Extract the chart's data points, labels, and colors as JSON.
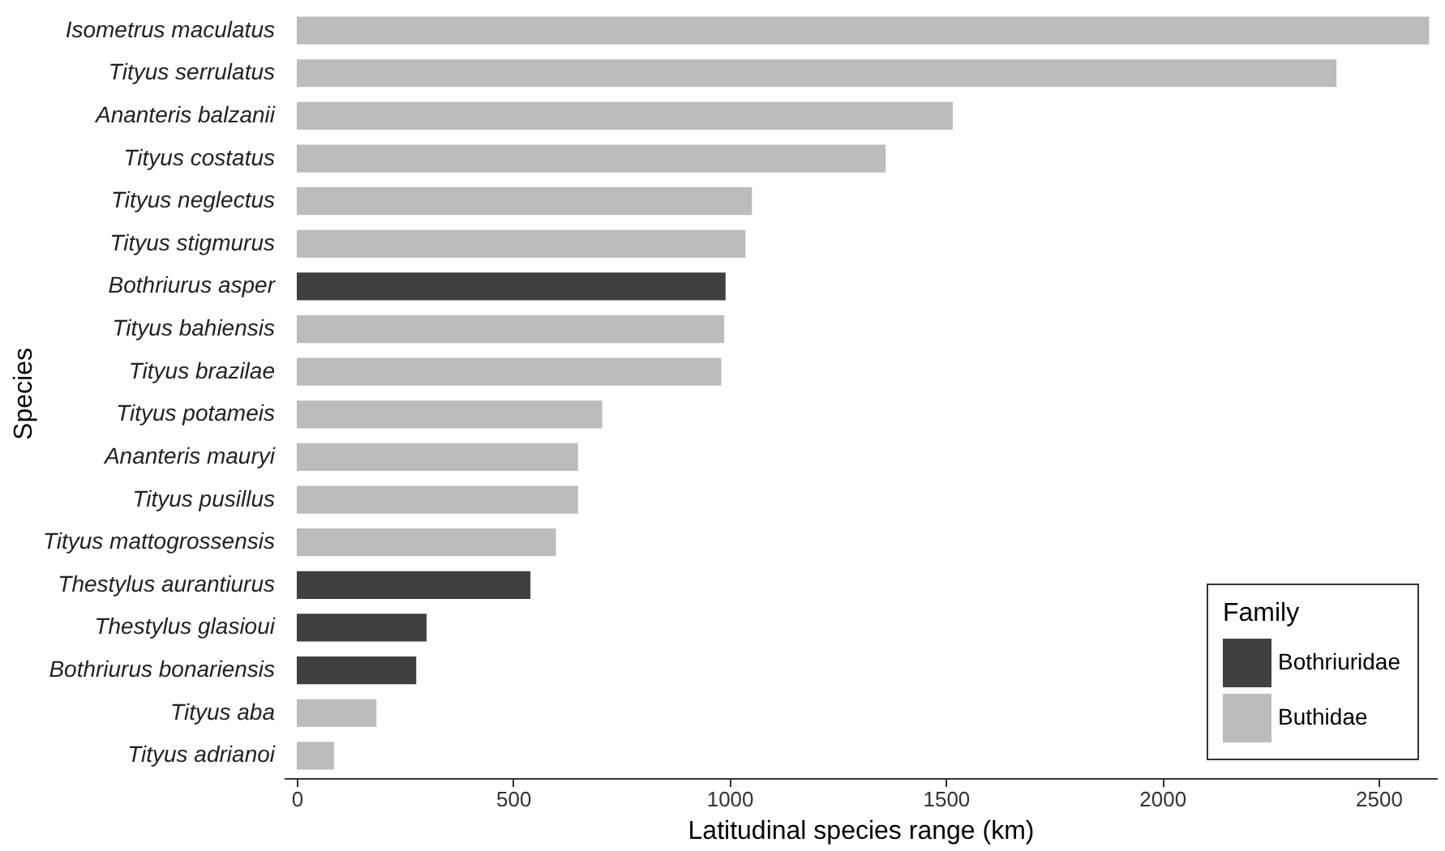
{
  "chart_data": {
    "type": "bar",
    "orientation": "horizontal",
    "xlabel": "Latitudinal species range (km)",
    "ylabel": "Species",
    "legend_title": "Family",
    "categories": [
      "Isometrus maculatus",
      "Tityus serrulatus",
      "Ananteris balzanii",
      "Tityus costatus",
      "Tityus neglectus",
      "Tityus stigmurus",
      "Bothriurus asper",
      "Tityus bahiensis",
      "Tityus brazilae",
      "Tityus potameis",
      "Ananteris mauryi",
      "Tityus pusillus",
      "Tityus mattogrossensis",
      "Thestylus aurantiurus",
      "Thestylus glasioui",
      "Bothriurus bonariensis",
      "Tityus aba",
      "Tityus adrianoi"
    ],
    "series": [
      {
        "name": "Bothriuridae",
        "color": "#404040",
        "values": [
          null,
          null,
          null,
          null,
          null,
          null,
          991,
          null,
          null,
          null,
          null,
          null,
          null,
          540,
          300,
          276,
          null,
          null
        ]
      },
      {
        "name": "Buthidae",
        "color": "#bcbcbc",
        "values": [
          2617,
          2403,
          1516,
          1361,
          1052,
          1037,
          null,
          988,
          981,
          706,
          650,
          650,
          599,
          null,
          null,
          null,
          184,
          86
        ]
      }
    ],
    "xlim": [
      -30,
      2635
    ],
    "xticks": [
      0,
      500,
      1000,
      1500,
      2000,
      2500
    ],
    "grid": false,
    "legend": "bottom right"
  }
}
